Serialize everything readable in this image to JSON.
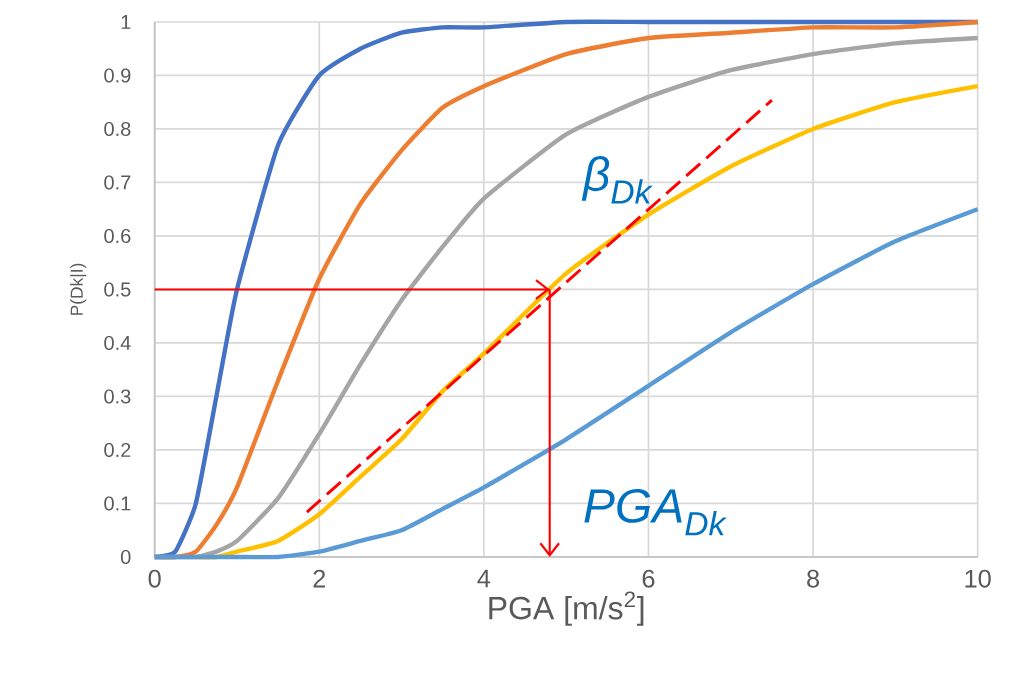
{
  "chart_data": {
    "type": "line",
    "xlabel": "PGA [m/s$^{2}$]",
    "ylabel": "P(Dk|I)",
    "x": [
      0,
      0.25,
      0.5,
      0.75,
      1,
      1.5,
      2,
      2.5,
      3,
      3.5,
      4,
      5,
      6,
      7,
      8,
      9,
      10
    ],
    "series": [
      {
        "color": "#4472c4",
        "values": [
          0,
          0.01,
          0.1,
          0.3,
          0.5,
          0.77,
          0.9,
          0.95,
          0.98,
          0.99,
          0.99,
          1,
          1,
          1,
          1,
          1,
          1
        ]
      },
      {
        "color": "#ed7d31",
        "values": [
          0,
          0,
          0.01,
          0.06,
          0.13,
          0.33,
          0.52,
          0.66,
          0.76,
          0.84,
          0.88,
          0.94,
          0.97,
          0.98,
          0.99,
          0.99,
          1
        ]
      },
      {
        "color": "#a5a5a5",
        "values": [
          0,
          0,
          0,
          0.01,
          0.03,
          0.11,
          0.23,
          0.36,
          0.48,
          0.58,
          0.67,
          0.79,
          0.86,
          0.91,
          0.94,
          0.96,
          0.97
        ]
      },
      {
        "color": "#ffc000",
        "values": [
          null,
          null,
          0,
          0,
          0.01,
          0.03,
          0.08,
          0.15,
          0.22,
          0.31,
          0.38,
          0.53,
          0.64,
          0.73,
          0.8,
          0.85,
          0.88
        ]
      },
      {
        "color": "#5b9bd5",
        "values": [
          0,
          0,
          0,
          0,
          0,
          0,
          0.01,
          0.03,
          0.05,
          0.09,
          0.13,
          0.22,
          0.32,
          0.42,
          0.51,
          0.59,
          0.65
        ]
      },
      {
        "type": "line",
        "color": "#ff0000",
        "line_style": "dashed",
        "x": [
          1.85,
          7.5
        ],
        "values": [
          0.084,
          0.854
        ]
      }
    ],
    "annotations": [
      "β$_{Dk}$",
      "PGA$_{Dk}$"
    ],
    "ref_lines": [
      {
        "axis": "y",
        "value": 0.5,
        "color": "#ff0000"
      },
      {
        "axis": "x",
        "value": 4.8,
        "color": "#ff0000"
      }
    ],
    "xlim": [
      0,
      10
    ],
    "ylim": [
      0,
      1
    ],
    "xticks": [
      0,
      2,
      4,
      6,
      8,
      10
    ],
    "yticks": [
      0,
      0.1,
      0.2,
      0.3,
      0.4,
      0.5,
      0.6,
      0.7,
      0.8,
      0.9,
      1
    ],
    "grid": true,
    "marker": "none",
    "line_style": "solid"
  }
}
